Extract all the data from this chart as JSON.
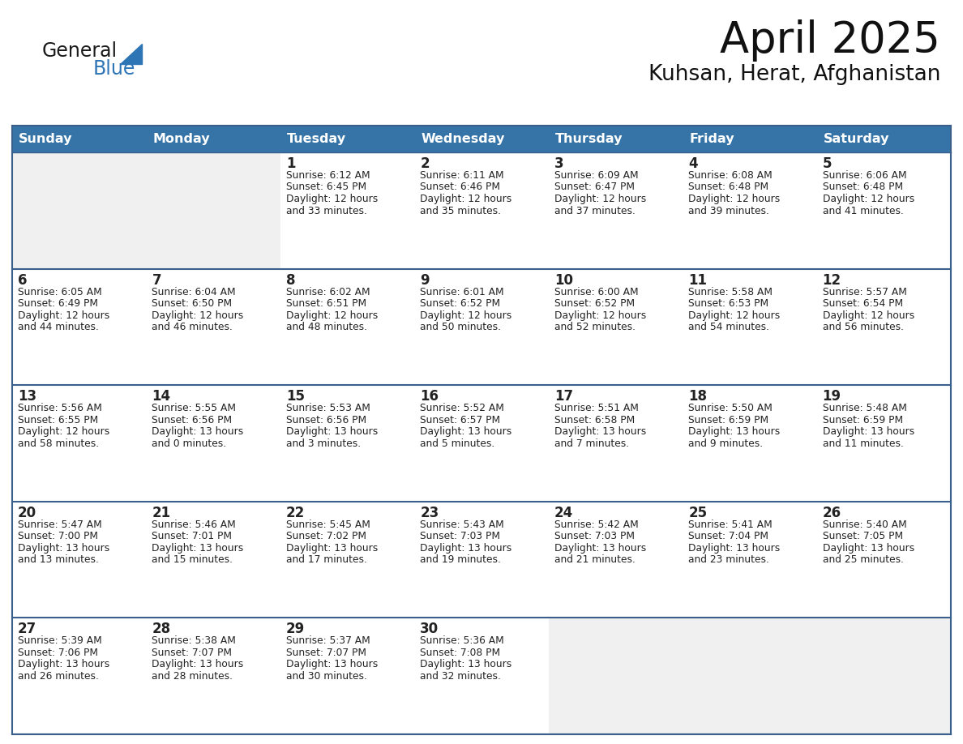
{
  "title": "April 2025",
  "subtitle": "Kuhsan, Herat, Afghanistan",
  "days_of_week": [
    "Sunday",
    "Monday",
    "Tuesday",
    "Wednesday",
    "Thursday",
    "Friday",
    "Saturday"
  ],
  "header_bg": "#3674a8",
  "header_text": "#FFFFFF",
  "cell_bg_white": "#FFFFFF",
  "cell_bg_gray": "#F0F0F0",
  "border_color": "#3a5f8a",
  "text_color": "#222222",
  "logo_general_color": "#1a1a1a",
  "logo_blue_color": "#2E75B6",
  "calendar": [
    [
      {
        "day": null,
        "sunrise": null,
        "sunset": null,
        "daylight": null
      },
      {
        "day": null,
        "sunrise": null,
        "sunset": null,
        "daylight": null
      },
      {
        "day": 1,
        "sunrise": "6:12 AM",
        "sunset": "6:45 PM",
        "daylight": "12 hours and 33 minutes."
      },
      {
        "day": 2,
        "sunrise": "6:11 AM",
        "sunset": "6:46 PM",
        "daylight": "12 hours and 35 minutes."
      },
      {
        "day": 3,
        "sunrise": "6:09 AM",
        "sunset": "6:47 PM",
        "daylight": "12 hours and 37 minutes."
      },
      {
        "day": 4,
        "sunrise": "6:08 AM",
        "sunset": "6:48 PM",
        "daylight": "12 hours and 39 minutes."
      },
      {
        "day": 5,
        "sunrise": "6:06 AM",
        "sunset": "6:48 PM",
        "daylight": "12 hours and 41 minutes."
      }
    ],
    [
      {
        "day": 6,
        "sunrise": "6:05 AM",
        "sunset": "6:49 PM",
        "daylight": "12 hours and 44 minutes."
      },
      {
        "day": 7,
        "sunrise": "6:04 AM",
        "sunset": "6:50 PM",
        "daylight": "12 hours and 46 minutes."
      },
      {
        "day": 8,
        "sunrise": "6:02 AM",
        "sunset": "6:51 PM",
        "daylight": "12 hours and 48 minutes."
      },
      {
        "day": 9,
        "sunrise": "6:01 AM",
        "sunset": "6:52 PM",
        "daylight": "12 hours and 50 minutes."
      },
      {
        "day": 10,
        "sunrise": "6:00 AM",
        "sunset": "6:52 PM",
        "daylight": "12 hours and 52 minutes."
      },
      {
        "day": 11,
        "sunrise": "5:58 AM",
        "sunset": "6:53 PM",
        "daylight": "12 hours and 54 minutes."
      },
      {
        "day": 12,
        "sunrise": "5:57 AM",
        "sunset": "6:54 PM",
        "daylight": "12 hours and 56 minutes."
      }
    ],
    [
      {
        "day": 13,
        "sunrise": "5:56 AM",
        "sunset": "6:55 PM",
        "daylight": "12 hours and 58 minutes."
      },
      {
        "day": 14,
        "sunrise": "5:55 AM",
        "sunset": "6:56 PM",
        "daylight": "13 hours and 0 minutes."
      },
      {
        "day": 15,
        "sunrise": "5:53 AM",
        "sunset": "6:56 PM",
        "daylight": "13 hours and 3 minutes."
      },
      {
        "day": 16,
        "sunrise": "5:52 AM",
        "sunset": "6:57 PM",
        "daylight": "13 hours and 5 minutes."
      },
      {
        "day": 17,
        "sunrise": "5:51 AM",
        "sunset": "6:58 PM",
        "daylight": "13 hours and 7 minutes."
      },
      {
        "day": 18,
        "sunrise": "5:50 AM",
        "sunset": "6:59 PM",
        "daylight": "13 hours and 9 minutes."
      },
      {
        "day": 19,
        "sunrise": "5:48 AM",
        "sunset": "6:59 PM",
        "daylight": "13 hours and 11 minutes."
      }
    ],
    [
      {
        "day": 20,
        "sunrise": "5:47 AM",
        "sunset": "7:00 PM",
        "daylight": "13 hours and 13 minutes."
      },
      {
        "day": 21,
        "sunrise": "5:46 AM",
        "sunset": "7:01 PM",
        "daylight": "13 hours and 15 minutes."
      },
      {
        "day": 22,
        "sunrise": "5:45 AM",
        "sunset": "7:02 PM",
        "daylight": "13 hours and 17 minutes."
      },
      {
        "day": 23,
        "sunrise": "5:43 AM",
        "sunset": "7:03 PM",
        "daylight": "13 hours and 19 minutes."
      },
      {
        "day": 24,
        "sunrise": "5:42 AM",
        "sunset": "7:03 PM",
        "daylight": "13 hours and 21 minutes."
      },
      {
        "day": 25,
        "sunrise": "5:41 AM",
        "sunset": "7:04 PM",
        "daylight": "13 hours and 23 minutes."
      },
      {
        "day": 26,
        "sunrise": "5:40 AM",
        "sunset": "7:05 PM",
        "daylight": "13 hours and 25 minutes."
      }
    ],
    [
      {
        "day": 27,
        "sunrise": "5:39 AM",
        "sunset": "7:06 PM",
        "daylight": "13 hours and 26 minutes."
      },
      {
        "day": 28,
        "sunrise": "5:38 AM",
        "sunset": "7:07 PM",
        "daylight": "13 hours and 28 minutes."
      },
      {
        "day": 29,
        "sunrise": "5:37 AM",
        "sunset": "7:07 PM",
        "daylight": "13 hours and 30 minutes."
      },
      {
        "day": 30,
        "sunrise": "5:36 AM",
        "sunset": "7:08 PM",
        "daylight": "13 hours and 32 minutes."
      },
      {
        "day": null,
        "sunrise": null,
        "sunset": null,
        "daylight": null
      },
      {
        "day": null,
        "sunrise": null,
        "sunset": null,
        "daylight": null
      },
      {
        "day": null,
        "sunrise": null,
        "sunset": null,
        "daylight": null
      }
    ]
  ],
  "empty_rows": [
    [
      0,
      0
    ],
    [
      0,
      1
    ],
    [
      4,
      4
    ],
    [
      4,
      5
    ],
    [
      4,
      6
    ]
  ]
}
